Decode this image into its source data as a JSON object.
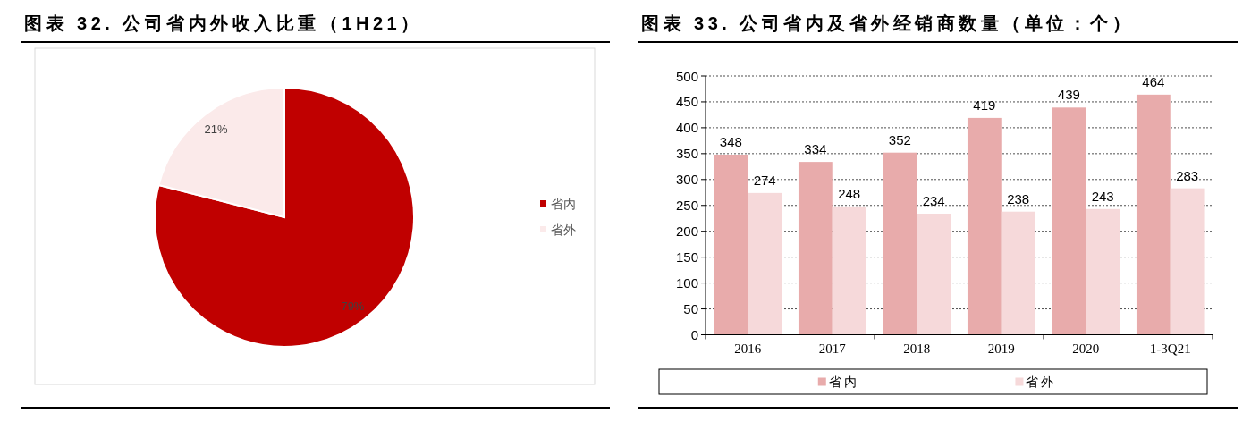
{
  "chart_data": [
    {
      "type": "pie",
      "title": "图表 32. 公司省内外收入比重（1H21）",
      "categories": [
        "省内",
        "省外"
      ],
      "values": [
        79,
        21
      ],
      "colors": [
        "#c00000",
        "#fbeaea"
      ],
      "value_labels": [
        "79%",
        "21%"
      ],
      "legend": "right"
    },
    {
      "type": "bar",
      "title": "图表 33. 公司省内及省外经销商数量（单位：个）",
      "categories": [
        "2016",
        "2017",
        "2018",
        "2019",
        "2020",
        "1-3Q21"
      ],
      "series": [
        {
          "name": "省内",
          "color": "#e8abab",
          "values": [
            348,
            334,
            352,
            419,
            439,
            464
          ]
        },
        {
          "name": "省外",
          "color": "#f6d9da",
          "values": [
            274,
            248,
            234,
            238,
            243,
            283
          ]
        }
      ],
      "ylim": [
        0,
        500
      ],
      "yticks": [
        0,
        50,
        100,
        150,
        200,
        250,
        300,
        350,
        400,
        450,
        500
      ],
      "grid": "y",
      "legend": "bottom",
      "data_labels": true
    }
  ]
}
